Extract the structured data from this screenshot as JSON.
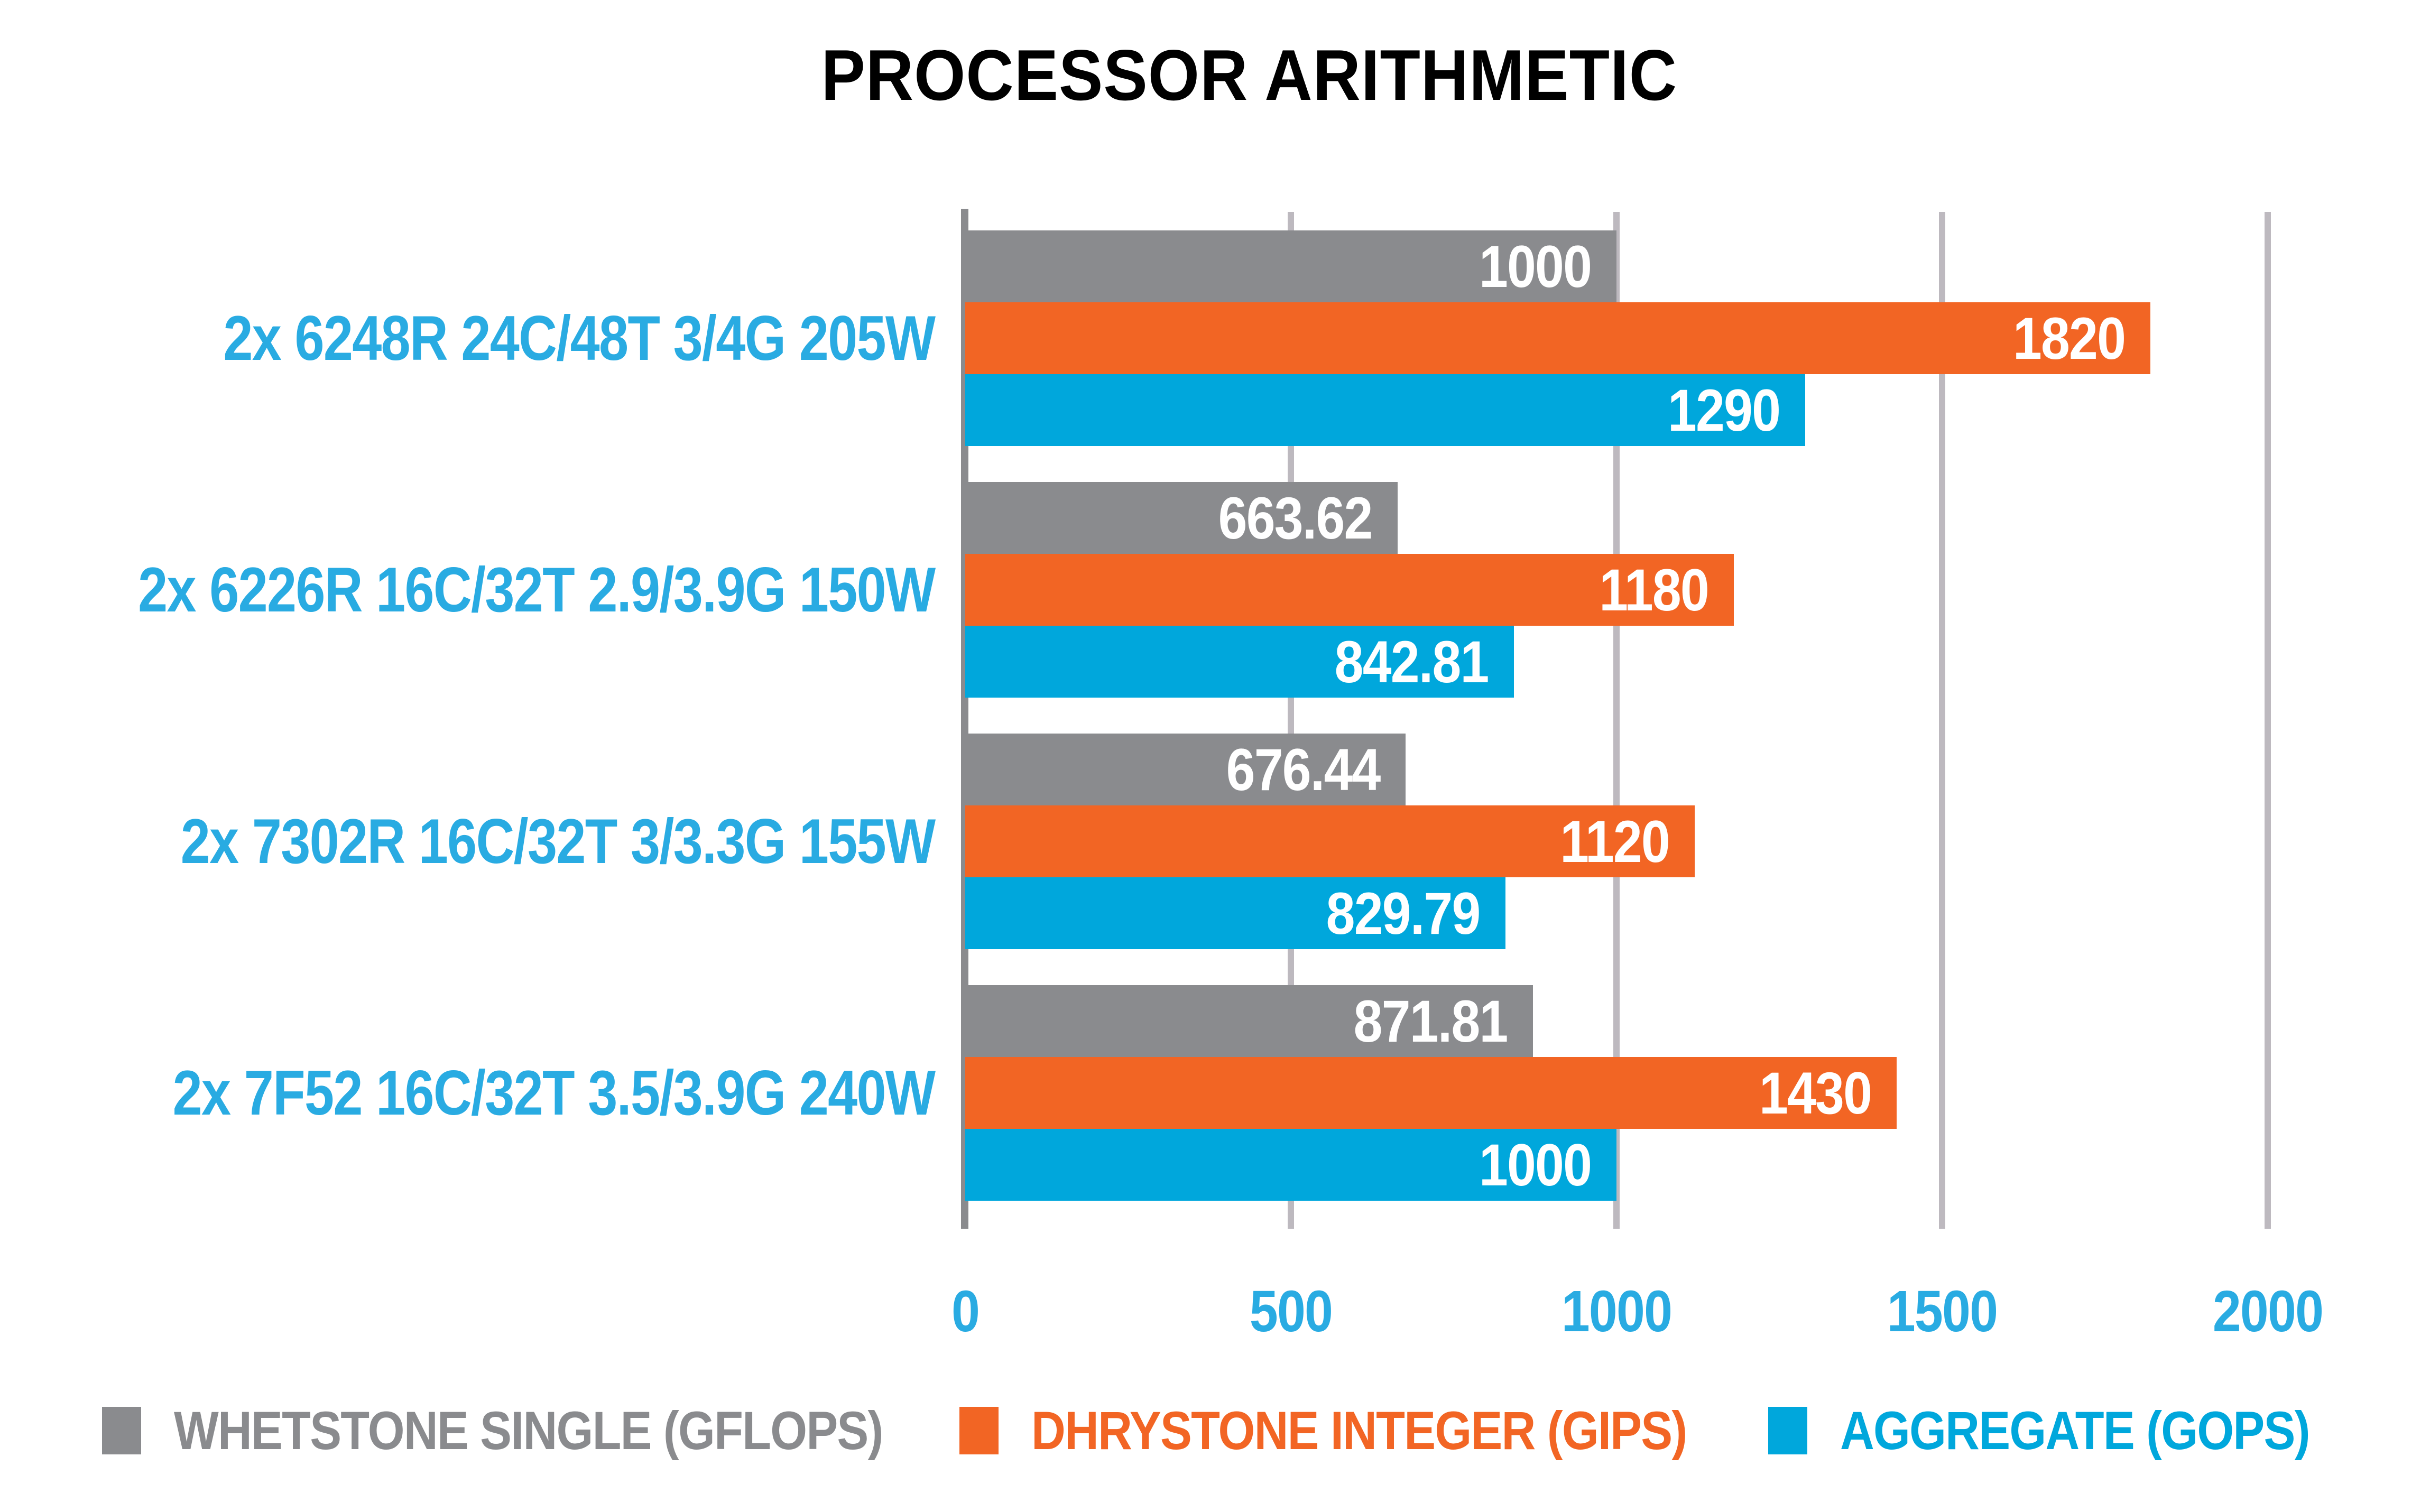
{
  "title": "PROCESSOR ARITHMETIC",
  "colors": {
    "accent_blue": "#29ABE2",
    "axis_line": "#8A8B8E",
    "gridline": "#BDB9BF",
    "bar_value_text": "#FFFFFF",
    "background": "#FFFFFF"
  },
  "chart_data": {
    "type": "bar",
    "orientation": "horizontal",
    "title": "PROCESSOR ARITHMETIC",
    "categories": [
      "2x 6248R 24C/48T 3/4G 205W",
      "2x 6226R 16C/32T 2.9/3.9G 150W",
      "2x 7302R 16C/32T 3/3.3G 155W",
      "2x 7F52 16C/32T 3.5/3.9G 240W"
    ],
    "series": [
      {
        "key": "whetstone-single",
        "name": "WHETSTONE SINGLE (GFLOPS)",
        "color": "#8A8B8E",
        "values": [
          1000,
          663.62,
          676.44,
          871.81
        ]
      },
      {
        "key": "dhrystone-integer",
        "name": "DHRYSTONE INTEGER (GIPS)",
        "color": "#F26524",
        "values": [
          1820,
          1180,
          1120,
          1430
        ]
      },
      {
        "key": "aggregate",
        "name": "AGGREGATE (GOPS)",
        "color": "#00A7DC",
        "values": [
          1290,
          842.81,
          829.79,
          1000
        ]
      }
    ],
    "xlim": [
      0,
      2000
    ],
    "x_ticks": [
      0,
      500,
      1000,
      1500,
      2000
    ],
    "grid": "vertical-gridlines",
    "legend_position": "bottom",
    "value_labels": "inside-end-white"
  }
}
